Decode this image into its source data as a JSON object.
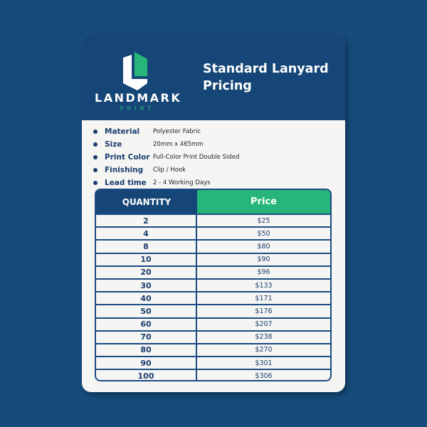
{
  "brand": {
    "name": "LANDMARK",
    "sub": "PRINT"
  },
  "title": "Standard Lanyard Pricing",
  "specs": [
    {
      "label": "Material",
      "value": "Polyester Fabric"
    },
    {
      "label": "Size",
      "value": "20mm x 465mm"
    },
    {
      "label": "Print Color",
      "value": "Full-Color Print Double Sided"
    },
    {
      "label": "Finishing",
      "value": "Clip / Hook"
    },
    {
      "label": "Lead time",
      "value": "2 - 4 Working Days"
    }
  ],
  "table": {
    "headers": [
      "QUANTITY",
      "Price"
    ],
    "rows": [
      [
        "2",
        "$25"
      ],
      [
        "4",
        "$50"
      ],
      [
        "8",
        "$80"
      ],
      [
        "10",
        "$90"
      ],
      [
        "20",
        "$96"
      ],
      [
        "30",
        "$133"
      ],
      [
        "40",
        "$171"
      ],
      [
        "50",
        "$176"
      ],
      [
        "60",
        "$207"
      ],
      [
        "70",
        "$238"
      ],
      [
        "80",
        "$270"
      ],
      [
        "90",
        "$301"
      ],
      [
        "100",
        "$306"
      ]
    ]
  },
  "colors": {
    "navy": "#154677",
    "green": "#27b67a",
    "background": "#164c7c"
  }
}
